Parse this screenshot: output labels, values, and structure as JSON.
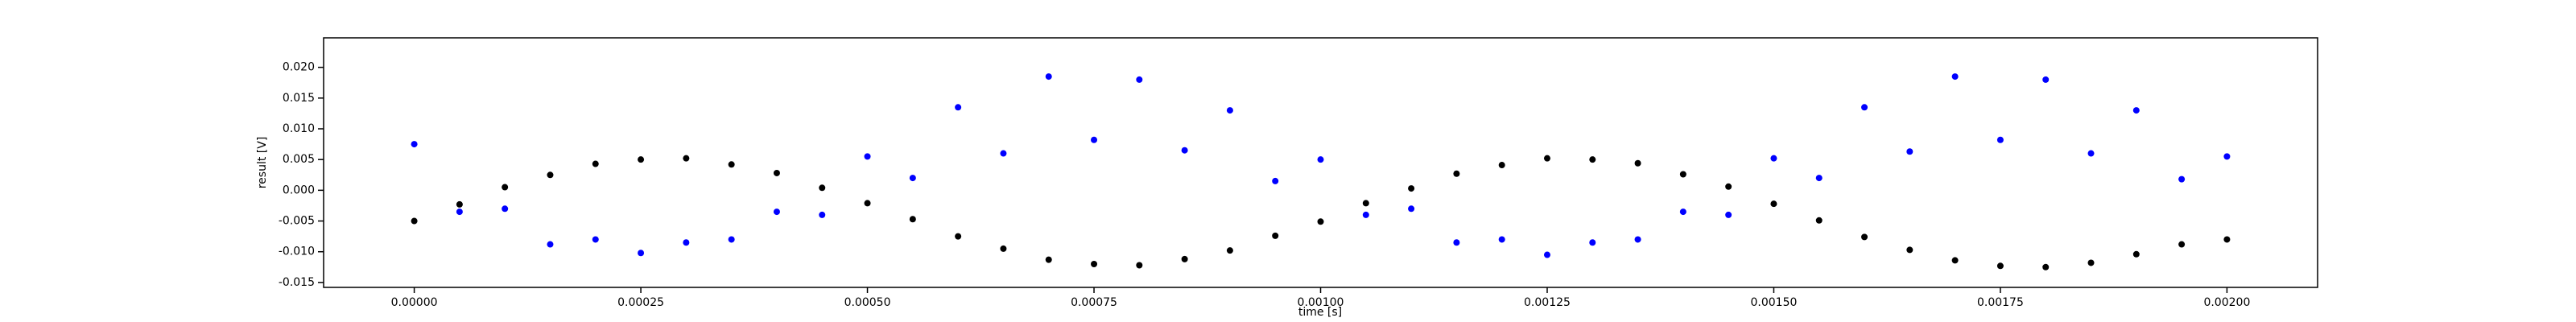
{
  "chart_data": {
    "type": "scatter",
    "xlabel": "time [s]",
    "ylabel": "result [V]",
    "x": [
      0,
      5e-05,
      0.0001,
      0.00015,
      0.0002,
      0.00025,
      0.0003,
      0.00035,
      0.0004,
      0.00045,
      0.0005,
      0.00055,
      0.0006,
      0.00065,
      0.0007,
      0.00075,
      0.0008,
      0.00085,
      0.0009,
      0.00095,
      0.001,
      0.00105,
      0.0011,
      0.00115,
      0.0012,
      0.00125,
      0.0013,
      0.00135,
      0.0014,
      0.00145,
      0.0015,
      0.00155,
      0.0016,
      0.00165,
      0.0017,
      0.00175,
      0.0018,
      0.00185,
      0.0019,
      0.00195,
      0.002
    ],
    "series": [
      {
        "color": "#000000",
        "values": [
          -0.005,
          -0.0023,
          0.0005,
          0.0025,
          0.0043,
          0.005,
          0.0052,
          0.0042,
          0.0028,
          0.0004,
          -0.0021,
          -0.0047,
          -0.0075,
          -0.0095,
          -0.0113,
          -0.012,
          -0.0122,
          -0.0112,
          -0.0098,
          -0.0074,
          -0.0051,
          -0.0021,
          0.0003,
          0.0027,
          0.0041,
          0.0052,
          0.005,
          0.0044,
          0.0026,
          0.0006,
          -0.0022,
          -0.0049,
          -0.0076,
          -0.0097,
          -0.0114,
          -0.0123,
          -0.0125,
          -0.0118,
          -0.0104,
          -0.0088,
          -0.008
        ]
      },
      {
        "color": "#0000ff",
        "values": [
          0.0075,
          -0.0035,
          -0.003,
          -0.0088,
          -0.008,
          -0.0102,
          -0.0085,
          -0.008,
          -0.0035,
          -0.004,
          0.0055,
          0.002,
          0.0135,
          0.006,
          0.0185,
          0.0082,
          0.018,
          0.0065,
          0.013,
          0.0015,
          0.005,
          -0.004,
          -0.003,
          -0.0085,
          -0.008,
          -0.0105,
          -0.0085,
          -0.008,
          -0.0035,
          -0.004,
          0.0052,
          0.002,
          0.0135,
          0.0063,
          0.0185,
          0.0082,
          0.018,
          0.006,
          0.013,
          0.0018,
          0.0055
        ]
      }
    ],
    "xlim": [
      -0.0001,
      0.0021
    ],
    "xticks": [
      {
        "value": 0,
        "label": "0.00000"
      },
      {
        "value": 0.00025,
        "label": "0.00025"
      },
      {
        "value": 0.0005,
        "label": "0.00050"
      },
      {
        "value": 0.00075,
        "label": "0.00075"
      },
      {
        "value": 0.001,
        "label": "0.00100"
      },
      {
        "value": 0.00125,
        "label": "0.00125"
      },
      {
        "value": 0.0015,
        "label": "0.00150"
      },
      {
        "value": 0.00175,
        "label": "0.00175"
      },
      {
        "value": 0.002,
        "label": "0.00200"
      }
    ],
    "ylim": [
      -0.0158,
      0.0248
    ],
    "yticks": [
      -0.015,
      {
        "value": -0.01,
        "label": "-0.010"
      },
      -0.005,
      {
        "value": 0,
        "label": "0.000"
      },
      0.005,
      {
        "value": 0.01,
        "label": "0.010"
      },
      0.015,
      {
        "value": 0.02,
        "label": "0.020"
      }
    ]
  }
}
